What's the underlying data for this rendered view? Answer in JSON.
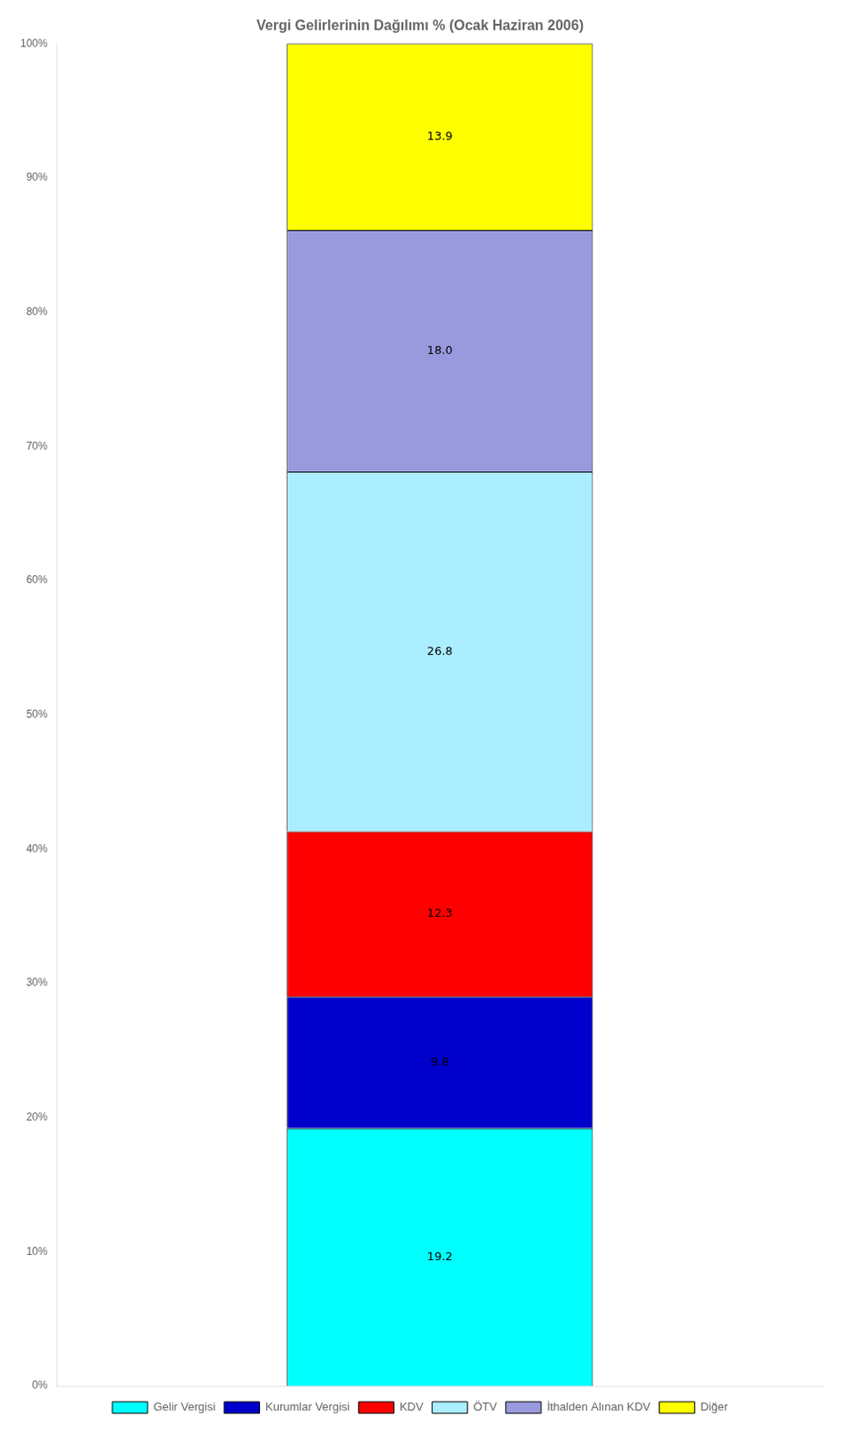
{
  "chart_data": {
    "type": "bar",
    "title": "Vergi Gelirlerinin Dağılımı % (Ocak Haziran 2006)",
    "categories": [
      null
    ],
    "stacked": true,
    "series": [
      {
        "name": "Gelir Vergisi",
        "color": "#00FFFF",
        "values": [
          19.2
        ],
        "value_labels": [
          "19.2"
        ]
      },
      {
        "name": "Kurumlar Vergisi",
        "color": "#0000CC",
        "values": [
          9.8
        ],
        "value_labels": [
          "9.8"
        ]
      },
      {
        "name": "KDV",
        "color": "#FF0000",
        "values": [
          12.3
        ],
        "value_labels": [
          "12.3"
        ]
      },
      {
        "name": "ÖTV",
        "color": "#AAEEFF",
        "values": [
          26.8
        ],
        "value_labels": [
          "26.8"
        ]
      },
      {
        "name": "İthalden Alınan KDV",
        "color": "#9999DD",
        "values": [
          18.0
        ],
        "value_labels": [
          "18.0"
        ]
      },
      {
        "name": "Diğer",
        "color": "#FFFF00",
        "values": [
          13.9
        ],
        "value_labels": [
          "13.9"
        ]
      }
    ],
    "ylim": [
      0,
      100
    ],
    "yticks": [
      {
        "value": 0,
        "label": "0%"
      },
      {
        "value": 10,
        "label": "10%"
      },
      {
        "value": 20,
        "label": "20%"
      },
      {
        "value": 30,
        "label": "30%"
      },
      {
        "value": 40,
        "label": "40%"
      },
      {
        "value": 50,
        "label": "50%"
      },
      {
        "value": 60,
        "label": "60%"
      },
      {
        "value": 70,
        "label": "70%"
      },
      {
        "value": 80,
        "label": "80%"
      },
      {
        "value": 90,
        "label": "90%"
      },
      {
        "value": 100,
        "label": "100%"
      }
    ],
    "grid": false,
    "legend": "bottom",
    "data_labels": true,
    "tick_labels": "y"
  }
}
